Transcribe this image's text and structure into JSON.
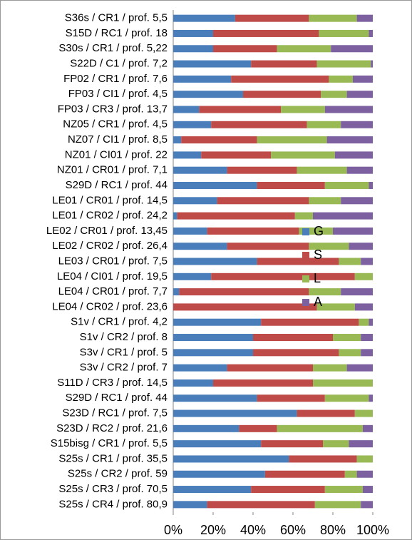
{
  "chart_data": {
    "type": "stacked_barh",
    "categories": [
      "S36s / CR1 / prof. 5,5",
      "S15D / RC1 / prof. 18",
      "S30s / CR1 / prof. 5,22",
      "S22D / C1 / prof. 7,2",
      "FP02 / CR1 / prof. 7,6",
      "FP03 / CI1 / prof. 4,5",
      "FP03 / CR3 / prof. 13,7",
      "NZ05 / CR1 / prof. 4,5",
      "NZ07 / CI1 / prof. 8,5",
      "NZ01 / CI01 / prof. 22",
      "NZ01 / CR01 / prof. 7,1",
      "S29D / RC1 / prof. 44",
      "LE01 / CR01 / prof. 14,5",
      "LE01 / CR02 / prof. 24,2",
      "LE02 / CR01 / prof. 13,45",
      "LE02 / CR02 / prof. 26,4",
      "LE03 / CR01 / prof. 7,5",
      "LE04 / CI01 / prof. 19,5",
      "LE04 / CR01 / prof. 7,7",
      "LE04 / CR02 / prof. 23,6",
      "S1v / CR1 / prof. 4,2",
      "S1v / CR2 / prof. 8",
      "S3v / CR1 / prof. 5",
      "S3v / CR2 / prof. 7",
      "S11D / CR3 / prof. 14,5",
      "S29D / RC1 / prof. 44",
      "S23D / RC1 / prof. 7,5",
      "S23D / RC2 / prof. 21,6",
      "S15bisg / CR1 / prof. 5,5",
      "S25s / CR1 / prof. 35,5",
      "S25s / CR2 / prof. 59",
      "S25s / CR3 / prof. 70,5",
      "S25s / CR4 / prof. 80,9"
    ],
    "series": [
      {
        "name": "G",
        "color": "#4a7ebb",
        "values": [
          31,
          20,
          20,
          39,
          29,
          35,
          13,
          19,
          4,
          14,
          27,
          42,
          22,
          2,
          17,
          27,
          42,
          19,
          3,
          0,
          44,
          40,
          40,
          27,
          20,
          42,
          62,
          33,
          44,
          58,
          46,
          39,
          17
        ]
      },
      {
        "name": "S",
        "color": "#be4b48",
        "values": [
          37,
          53,
          32,
          33,
          49,
          39,
          41,
          48,
          38,
          35,
          35,
          34,
          46,
          59,
          46,
          41,
          41,
          72,
          65,
          72,
          49,
          40,
          43,
          43,
          50,
          34,
          29,
          19,
          31,
          34,
          40,
          37,
          54
        ]
      },
      {
        "name": "L",
        "color": "#98b954",
        "values": [
          24,
          25,
          27,
          27,
          12,
          13,
          22,
          17,
          35,
          32,
          25,
          22,
          16,
          9,
          17,
          20,
          11,
          9,
          16,
          19,
          5,
          14,
          11,
          17,
          30,
          22,
          9,
          43,
          13,
          8,
          6,
          19,
          23
        ]
      },
      {
        "name": "A",
        "color": "#7d60a0",
        "values": [
          8,
          2,
          21,
          1,
          10,
          13,
          24,
          16,
          23,
          19,
          13,
          2,
          16,
          30,
          20,
          12,
          6,
          0,
          16,
          9,
          2,
          6,
          6,
          13,
          0,
          2,
          0,
          5,
          12,
          0,
          8,
          5,
          6
        ]
      }
    ],
    "xlim": [
      0,
      100
    ],
    "xticks": [
      {
        "value": 0,
        "label": "0%"
      },
      {
        "value": 20,
        "label": "20%"
      },
      {
        "value": 40,
        "label": "40%"
      },
      {
        "value": 60,
        "label": "60%"
      },
      {
        "value": 80,
        "label": "80%"
      },
      {
        "value": 100,
        "label": "100%"
      }
    ],
    "legend": "right"
  }
}
